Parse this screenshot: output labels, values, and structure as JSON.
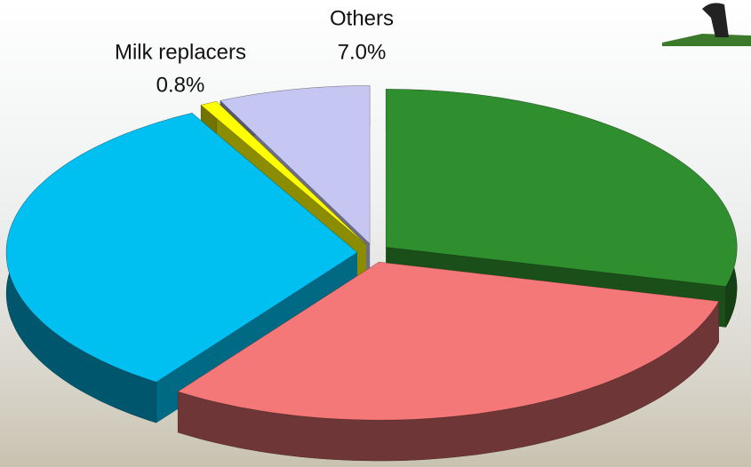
{
  "chart_data": {
    "type": "pie3d",
    "categories": [
      null,
      null,
      null,
      "Milk replacers",
      "Others"
    ],
    "values": [
      29.0,
      30.7,
      32.5,
      0.8,
      7.0
    ],
    "value_labels": [
      null,
      null,
      null,
      "0.8%",
      "7.0%"
    ],
    "colors": [
      "#2f8f2f",
      "#f47878",
      "#00c0f2",
      "#ffff00",
      "#c6c6f2"
    ]
  }
}
